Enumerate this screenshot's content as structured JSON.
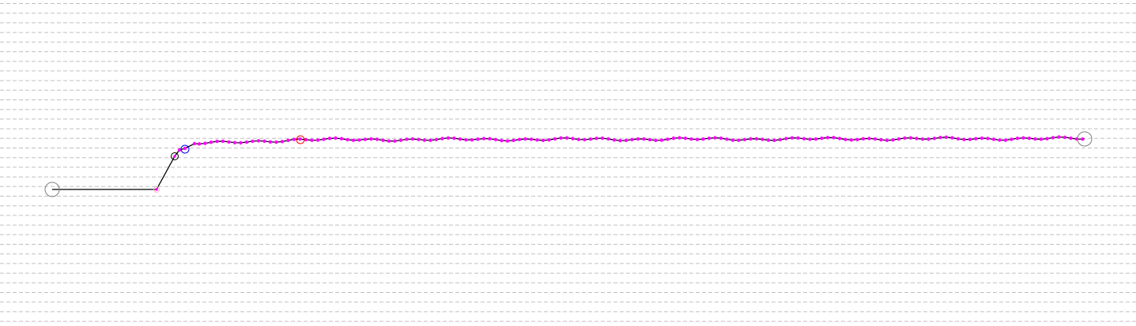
{
  "diagram": {
    "type": "trajectory-trace",
    "grid": {
      "style": "dashed-horizontal",
      "color": "#c0c0c0"
    },
    "colors": {
      "trace_line": "#000000",
      "sample_points": "#ff00ff",
      "start_marker": "#808080",
      "end_marker": "#808080",
      "corner_marker": "#ffb6c1",
      "waypoint_marker_1": "#000000",
      "waypoint_marker_2": "#0000ff",
      "waypoint_marker_3": "#ff0000"
    },
    "markers": [
      "start",
      "corner",
      "waypoint-1",
      "waypoint-2",
      "waypoint-3",
      "end"
    ]
  }
}
